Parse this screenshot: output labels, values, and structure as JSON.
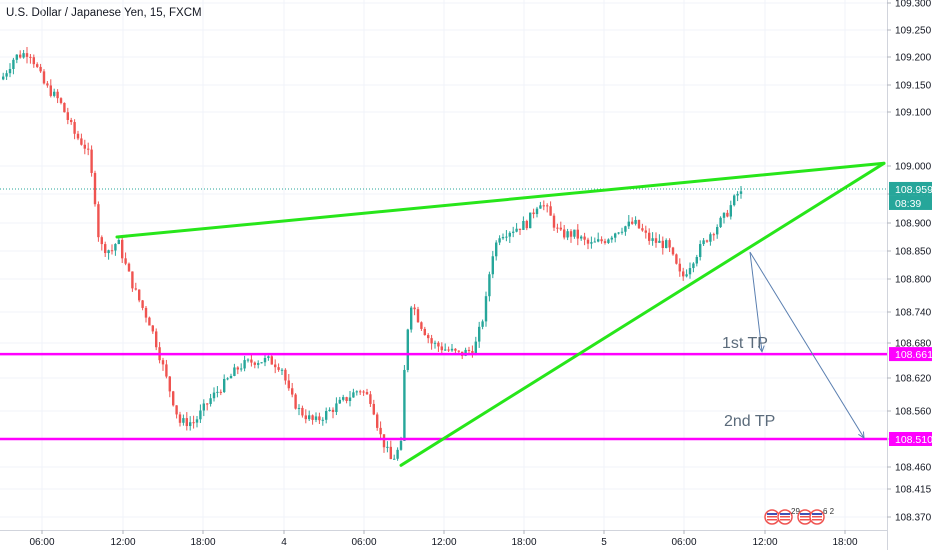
{
  "header": {
    "title": "U.S. Dollar / Japanese Yen, 15, FXCM"
  },
  "chart_data": {
    "type": "candlestick",
    "symbol": "U.S. Dollar / Japanese Yen",
    "interval": "15",
    "source": "FXCM",
    "y_ticks": [
      "109.300",
      "109.250",
      "109.200",
      "109.150",
      "109.100",
      "109.000",
      "108.950",
      "108.900",
      "108.850",
      "108.800",
      "108.740",
      "108.680",
      "108.620",
      "108.560",
      "108.510",
      "108.460",
      "108.415",
      "108.370"
    ],
    "x_ticks": [
      "06:00",
      "12:00",
      "18:00",
      "4",
      "06:00",
      "12:00",
      "18:00",
      "5",
      "06:00",
      "12:00",
      "18:00"
    ],
    "price_tags": [
      {
        "label": "108.959",
        "color": "#26a69a"
      },
      {
        "label": "08:39",
        "color": "#26a69a"
      },
      {
        "label": "108.661",
        "color": "#ff00ff"
      },
      {
        "label": "108.510",
        "color": "#ff00ff"
      }
    ],
    "horizontal_lines": [
      108.661,
      108.51
    ],
    "annotations": [
      "1st TP",
      "2nd TP"
    ],
    "colors": {
      "up": "#26a69a",
      "down": "#ef5350",
      "trendline": "#27e61a",
      "level": "#ff00ff",
      "arrow": "#5a7fb0"
    },
    "legend_flags": [
      "29",
      "6 2"
    ]
  }
}
